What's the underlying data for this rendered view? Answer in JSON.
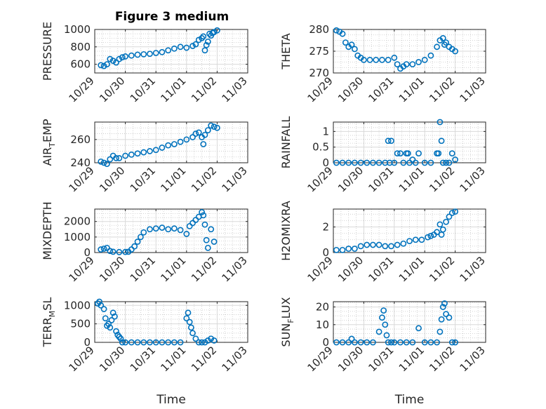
{
  "figure": {
    "title": "Figure 3 medium",
    "marker_color": "#0072bd",
    "x_axis": {
      "label": "Time",
      "ticks": [
        "10/29",
        "10/30",
        "10/31",
        "11/01",
        "11/02",
        "11/03"
      ],
      "range_days": [
        0,
        5
      ]
    }
  },
  "chart_data": [
    {
      "type": "scatter",
      "ylabel": {
        "base": "PRESSURE",
        "sub": "",
        "rest": ""
      },
      "ylim": [
        500,
        1000
      ],
      "yticks": [
        600,
        800,
        1000
      ],
      "xlabel": "",
      "x_label_shown": false,
      "grid": true,
      "series": [
        {
          "x": [
            0.2,
            0.3,
            0.4,
            0.5,
            0.6,
            0.7,
            0.8,
            0.9,
            1.0,
            1.2,
            1.4,
            1.6,
            1.8,
            2.0,
            2.2,
            2.4,
            2.6,
            2.8,
            3.0,
            3.2,
            3.3,
            3.4,
            3.5,
            3.55,
            3.6,
            3.65,
            3.7,
            3.75,
            3.8,
            3.85,
            3.9,
            4.0
          ],
          "y": [
            590,
            580,
            600,
            660,
            640,
            620,
            660,
            680,
            690,
            700,
            710,
            715,
            720,
            730,
            740,
            760,
            780,
            800,
            790,
            810,
            830,
            880,
            900,
            920,
            760,
            820,
            860,
            950,
            930,
            960,
            970,
            990
          ]
        }
      ]
    },
    {
      "type": "scatter",
      "ylabel": {
        "base": "THETA",
        "sub": "",
        "rest": ""
      },
      "ylim": [
        270,
        280
      ],
      "yticks": [
        270,
        275,
        280
      ],
      "xlabel": "",
      "x_label_shown": false,
      "grid": true,
      "series": [
        {
          "x": [
            0.1,
            0.2,
            0.3,
            0.4,
            0.5,
            0.6,
            0.7,
            0.8,
            0.9,
            1.0,
            1.2,
            1.4,
            1.6,
            1.8,
            2.0,
            2.1,
            2.2,
            2.3,
            2.4,
            2.6,
            2.8,
            3.0,
            3.2,
            3.4,
            3.5,
            3.6,
            3.65,
            3.7,
            3.8,
            3.9,
            4.0
          ],
          "y": [
            279.8,
            279.5,
            279.0,
            277.0,
            276.0,
            276.5,
            275.5,
            274.0,
            273.5,
            273.0,
            273.0,
            273.0,
            273.0,
            273.0,
            273.5,
            272.0,
            271.0,
            271.5,
            272.0,
            272.0,
            272.5,
            273.0,
            274.0,
            276.0,
            277.5,
            278.0,
            276.5,
            277.0,
            276.0,
            275.5,
            275.0
          ]
        }
      ]
    },
    {
      "type": "scatter",
      "ylabel": {
        "base": "AIR",
        "sub": "T",
        "rest": "EMP"
      },
      "ylim": [
        240,
        275
      ],
      "yticks": [
        240,
        260
      ],
      "xlabel": "",
      "x_label_shown": false,
      "grid": true,
      "series": [
        {
          "x": [
            0.2,
            0.3,
            0.4,
            0.5,
            0.6,
            0.7,
            0.8,
            1.0,
            1.2,
            1.4,
            1.6,
            1.8,
            2.0,
            2.2,
            2.4,
            2.6,
            2.8,
            3.0,
            3.2,
            3.3,
            3.4,
            3.5,
            3.55,
            3.6,
            3.7,
            3.8,
            3.9,
            4.0
          ],
          "y": [
            241,
            240,
            239,
            243,
            246,
            244,
            244,
            246,
            247,
            248,
            249,
            250,
            251,
            253,
            255,
            256,
            258,
            260,
            262,
            265,
            266,
            262,
            256,
            264,
            268,
            272,
            271,
            270
          ]
        }
      ]
    },
    {
      "type": "scatter",
      "ylabel": {
        "base": "RAINFALL",
        "sub": "",
        "rest": ""
      },
      "ylim": [
        0,
        1.3
      ],
      "yticks": [
        0,
        0.5,
        1
      ],
      "xlabel": "",
      "x_label_shown": false,
      "grid": true,
      "series": [
        {
          "x": [
            0.1,
            0.3,
            0.5,
            0.7,
            0.9,
            1.1,
            1.3,
            1.5,
            1.7,
            1.8,
            1.85,
            1.9,
            2.0,
            2.1,
            2.2,
            2.3,
            2.4,
            2.45,
            2.5,
            2.6,
            2.7,
            2.8,
            3.0,
            3.2,
            3.4,
            3.45,
            3.5,
            3.55,
            3.6,
            3.7,
            3.8,
            3.9,
            4.0
          ],
          "y": [
            0,
            0,
            0,
            0,
            0,
            0,
            0,
            0,
            0,
            0.7,
            0,
            0.7,
            0,
            0.3,
            0.3,
            0,
            0.3,
            0.3,
            0,
            0.1,
            0,
            0.3,
            0,
            0,
            0.3,
            0.3,
            1.3,
            0.7,
            0,
            0,
            0,
            0.3,
            0.1
          ]
        }
      ]
    },
    {
      "type": "scatter",
      "ylabel": {
        "base": "MIXDEPTH",
        "sub": "",
        "rest": ""
      },
      "ylim": [
        0,
        2800
      ],
      "yticks": [
        0,
        1000,
        2000
      ],
      "xlabel": "",
      "x_label_shown": false,
      "grid": true,
      "series": [
        {
          "x": [
            0.2,
            0.3,
            0.4,
            0.5,
            0.6,
            0.8,
            1.0,
            1.1,
            1.2,
            1.3,
            1.4,
            1.5,
            1.6,
            1.8,
            2.0,
            2.2,
            2.4,
            2.6,
            2.8,
            3.0,
            3.1,
            3.2,
            3.3,
            3.4,
            3.5,
            3.55,
            3.6,
            3.65,
            3.7,
            3.8,
            3.9
          ],
          "y": [
            200,
            250,
            300,
            100,
            50,
            30,
            40,
            50,
            200,
            400,
            700,
            1000,
            1300,
            1500,
            1550,
            1600,
            1500,
            1550,
            1450,
            1200,
            1700,
            1900,
            2100,
            2300,
            2600,
            2400,
            1800,
            800,
            300,
            1500,
            700
          ]
        }
      ]
    },
    {
      "type": "scatter",
      "ylabel": {
        "base": "H2OMIXRA",
        "sub": "",
        "rest": ""
      },
      "ylim": [
        0,
        3.4
      ],
      "yticks": [
        0,
        2
      ],
      "xlabel": "",
      "x_label_shown": false,
      "grid": true,
      "series": [
        {
          "x": [
            0.1,
            0.3,
            0.5,
            0.7,
            0.9,
            1.1,
            1.3,
            1.5,
            1.7,
            1.9,
            2.1,
            2.3,
            2.5,
            2.7,
            2.9,
            3.1,
            3.2,
            3.3,
            3.4,
            3.5,
            3.55,
            3.6,
            3.7,
            3.8,
            3.9,
            4.0
          ],
          "y": [
            0.2,
            0.2,
            0.3,
            0.3,
            0.5,
            0.6,
            0.6,
            0.6,
            0.5,
            0.5,
            0.6,
            0.7,
            0.9,
            1.0,
            1.0,
            1.2,
            1.3,
            1.4,
            1.6,
            2.2,
            1.4,
            1.8,
            2.4,
            2.8,
            3.1,
            3.2
          ]
        }
      ]
    },
    {
      "type": "scatter",
      "ylabel": {
        "base": "TERR",
        "sub": "M",
        "rest": "SL"
      },
      "ylim": [
        0,
        1100
      ],
      "yticks": [
        0,
        500,
        1000
      ],
      "xlabel": "Time",
      "x_label_shown": true,
      "grid": true,
      "series": [
        {
          "x": [
            0.1,
            0.15,
            0.2,
            0.3,
            0.35,
            0.4,
            0.45,
            0.5,
            0.55,
            0.6,
            0.65,
            0.7,
            0.75,
            0.8,
            0.85,
            0.9,
            1.0,
            1.2,
            1.4,
            1.6,
            1.8,
            2.0,
            2.2,
            2.4,
            2.6,
            2.8,
            3.0,
            3.05,
            3.1,
            3.15,
            3.2,
            3.3,
            3.4,
            3.5,
            3.6,
            3.7,
            3.8,
            3.9
          ],
          "y": [
            1050,
            1100,
            1000,
            900,
            650,
            450,
            500,
            400,
            600,
            800,
            700,
            300,
            200,
            150,
            100,
            0,
            0,
            0,
            0,
            0,
            0,
            0,
            0,
            0,
            0,
            0,
            650,
            800,
            550,
            400,
            250,
            100,
            0,
            0,
            0,
            50,
            100,
            50
          ]
        }
      ]
    },
    {
      "type": "scatter",
      "ylabel": {
        "base": "SUN",
        "sub": "F",
        "rest": "LUX"
      },
      "ylim": [
        0,
        23
      ],
      "yticks": [
        0,
        10,
        20
      ],
      "xlabel": "Time",
      "x_label_shown": true,
      "grid": true,
      "series": [
        {
          "x": [
            0.1,
            0.3,
            0.5,
            0.6,
            0.7,
            0.9,
            1.1,
            1.3,
            1.5,
            1.6,
            1.65,
            1.7,
            1.75,
            1.8,
            1.9,
            2.0,
            2.2,
            2.4,
            2.6,
            2.8,
            3.0,
            3.2,
            3.4,
            3.5,
            3.55,
            3.6,
            3.65,
            3.7,
            3.8,
            3.9,
            4.0
          ],
          "y": [
            0,
            0,
            0,
            2,
            0,
            0,
            0,
            0,
            6,
            14,
            18,
            10,
            4,
            0,
            0,
            0,
            0,
            0,
            0,
            8,
            0,
            0,
            0,
            6,
            13,
            20,
            22,
            16,
            14,
            0,
            0
          ]
        }
      ]
    }
  ]
}
